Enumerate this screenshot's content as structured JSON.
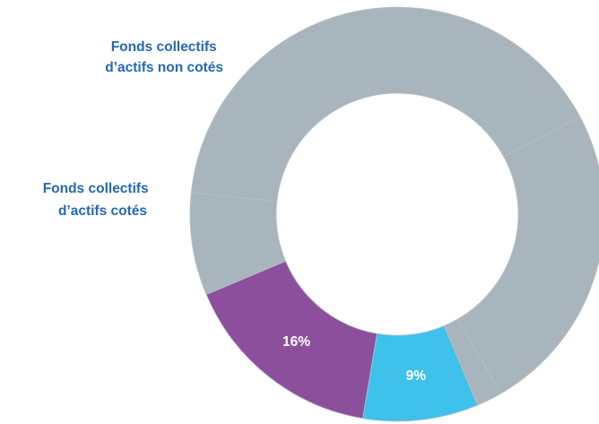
{
  "chart_data": {
    "type": "pie",
    "donut": true,
    "title": "",
    "slices": [
      {
        "name": "",
        "value": 40.5,
        "color": "#a8b5bd",
        "label": ""
      },
      {
        "name": "",
        "value": 24.5,
        "color": "#a8b5bd",
        "label": ""
      },
      {
        "name": "",
        "value": 2,
        "color": "#a8b5bd",
        "label": ""
      },
      {
        "name": "Fonds collectifs d’actifs cotés",
        "value": 9,
        "color": "#3ec1ea",
        "label": "9%"
      },
      {
        "name": "Fonds collectifs d’actifs non cotés",
        "value": 16,
        "color": "#8c4f9c",
        "label": "16%"
      },
      {
        "name": "",
        "value": 8,
        "color": "#a8b5bd",
        "label": ""
      }
    ],
    "callouts": [
      {
        "lines": [
          "Fonds collectifs",
          "d’actifs non cotés"
        ],
        "color": "#2469b3"
      },
      {
        "lines": [
          "Fonds collectifs",
          "d’actifs cotés"
        ],
        "color": "#2469b3"
      }
    ]
  }
}
